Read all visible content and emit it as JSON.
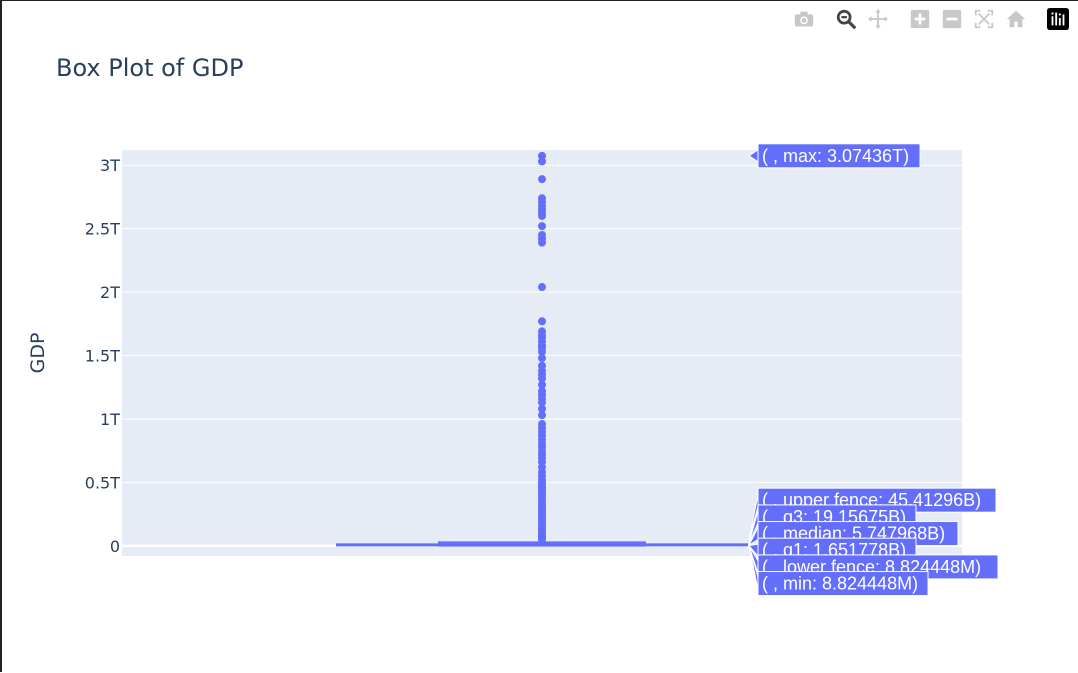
{
  "modebar": {
    "buttons": [
      {
        "name": "camera-icon",
        "color": "#c8c8c8"
      },
      {
        "name": "zoom-icon",
        "color": "#444444"
      },
      {
        "name": "pan-icon",
        "color": "#c8c8c8"
      },
      {
        "name": "zoom-in-icon",
        "color": "#c8c8c8"
      },
      {
        "name": "zoom-out-icon",
        "color": "#c8c8c8"
      },
      {
        "name": "autoscale-icon",
        "color": "#c8c8c8"
      },
      {
        "name": "reset-axes-icon",
        "color": "#c8c8c8"
      },
      {
        "name": "plotly-logo-icon",
        "color": "#000000"
      }
    ]
  },
  "chart_data": {
    "type": "box",
    "title": "Box Plot of GDP",
    "xlabel": "",
    "ylabel": "GDP",
    "ylim": [
      -0.08,
      3.12
    ],
    "ytick_values": [
      0,
      0.5,
      1,
      1.5,
      2,
      2.5,
      3
    ],
    "ytick_labels": [
      "0",
      "0.5T",
      "1T",
      "1.5T",
      "2T",
      "2.5T",
      "3T"
    ],
    "grid": true,
    "colors": {
      "plot_bg": "#e5ecf6",
      "series": "#636efa",
      "grid": "#ffffff",
      "text": "#2a3f5f"
    },
    "units": "T",
    "stats": {
      "min": 8.824448e-06,
      "lower_fence": 8.824448e-06,
      "q1": 0.001651778,
      "median": 0.005747968,
      "q3": 0.01915675,
      "upper_fence": 0.04541296,
      "max": 3.07436
    },
    "outliers": [
      3.074,
      3.03,
      2.89,
      2.74,
      2.71,
      2.68,
      2.65,
      2.62,
      2.6,
      2.52,
      2.45,
      2.42,
      2.39,
      2.04,
      1.77,
      1.69,
      1.66,
      1.64,
      1.61,
      1.58,
      1.56,
      1.53,
      1.48,
      1.42,
      1.38,
      1.35,
      1.32,
      1.27,
      1.22,
      1.19,
      1.16,
      1.13,
      1.08,
      1.03,
      0.96,
      0.93,
      0.9,
      0.87,
      0.84,
      0.81,
      0.78,
      0.75,
      0.72,
      0.69,
      0.66,
      0.62,
      0.58,
      0.55,
      0.52,
      0.5,
      0.48,
      0.46,
      0.44,
      0.42,
      0.4,
      0.38,
      0.36,
      0.34,
      0.32,
      0.3,
      0.28,
      0.26,
      0.24,
      0.22,
      0.2,
      0.18,
      0.16,
      0.14,
      0.12,
      0.1,
      0.09,
      0.08,
      0.07,
      0.06,
      0.05
    ],
    "hover_labels": [
      {
        "key": "max",
        "text": "( , max: 3.07436T)"
      },
      {
        "key": "upper_fence",
        "text": "( , upper fence: 45.41296B)"
      },
      {
        "key": "q3",
        "text": "( , q3: 19.15675B)"
      },
      {
        "key": "median",
        "text": "( , median: 5.747968B)"
      },
      {
        "key": "q1",
        "text": "( , q1: 1.651778B)"
      },
      {
        "key": "lower_fence",
        "text": "( , lower fence: 8.824448M)"
      },
      {
        "key": "min",
        "text": "( , min: 8.824448M)"
      }
    ]
  }
}
